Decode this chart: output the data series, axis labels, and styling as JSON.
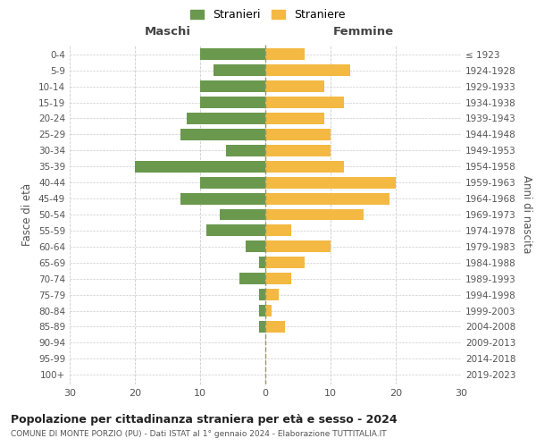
{
  "age_groups": [
    "0-4",
    "5-9",
    "10-14",
    "15-19",
    "20-24",
    "25-29",
    "30-34",
    "35-39",
    "40-44",
    "45-49",
    "50-54",
    "55-59",
    "60-64",
    "65-69",
    "70-74",
    "75-79",
    "80-84",
    "85-89",
    "90-94",
    "95-99",
    "100+"
  ],
  "birth_years": [
    "2019-2023",
    "2014-2018",
    "2009-2013",
    "2004-2008",
    "1999-2003",
    "1994-1998",
    "1989-1993",
    "1984-1988",
    "1979-1983",
    "1974-1978",
    "1969-1973",
    "1964-1968",
    "1959-1963",
    "1954-1958",
    "1949-1953",
    "1944-1948",
    "1939-1943",
    "1934-1938",
    "1929-1933",
    "1924-1928",
    "≤ 1923"
  ],
  "maschi": [
    10,
    8,
    10,
    10,
    12,
    13,
    6,
    20,
    10,
    13,
    7,
    9,
    3,
    1,
    4,
    1,
    1,
    1,
    0,
    0,
    0
  ],
  "femmine": [
    6,
    13,
    9,
    12,
    9,
    10,
    10,
    12,
    20,
    19,
    15,
    4,
    10,
    6,
    4,
    2,
    1,
    3,
    0,
    0,
    0
  ],
  "male_color": "#6a994e",
  "female_color": "#f4b942",
  "title": "Popolazione per cittadinanza straniera per età e sesso - 2024",
  "subtitle": "COMUNE DI MONTE PORZIO (PU) - Dati ISTAT al 1° gennaio 2024 - Elaborazione TUTTITALIA.IT",
  "xlabel_left": "Maschi",
  "xlabel_right": "Femmine",
  "ylabel_left": "Fasce di età",
  "ylabel_right": "Anni di nascita",
  "legend_male": "Stranieri",
  "legend_female": "Straniere",
  "xlim": 30,
  "background_color": "#ffffff",
  "grid_color": "#cccccc"
}
